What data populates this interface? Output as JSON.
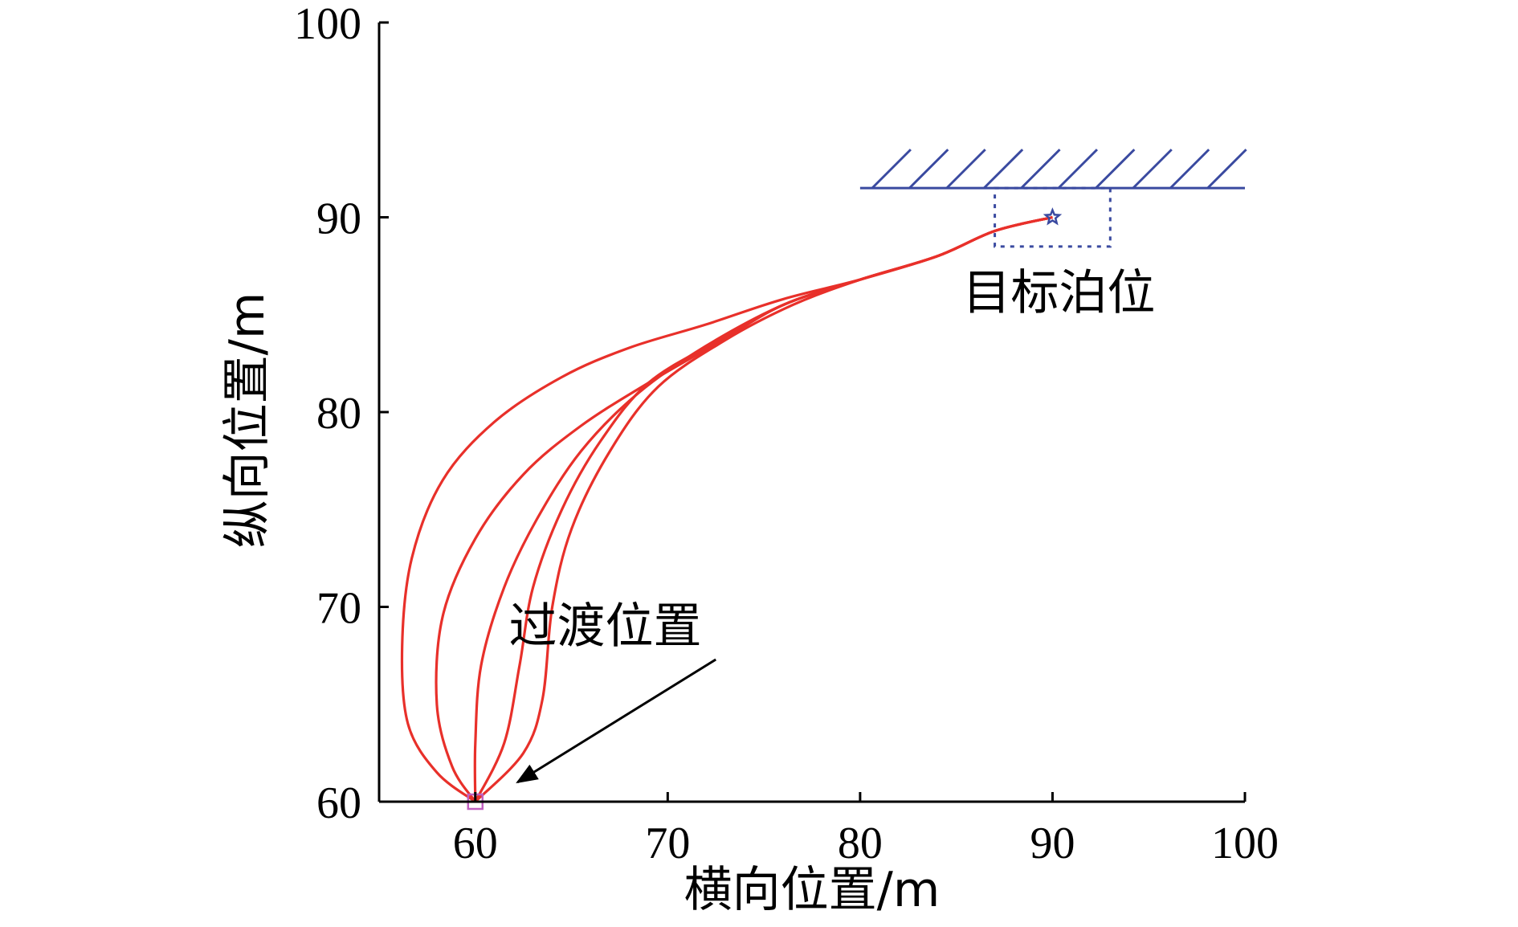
{
  "chart_data": {
    "type": "line",
    "xlabel": "横向位置/m",
    "ylabel": "纵向位置/m",
    "xlim": [
      55,
      100
    ],
    "ylim": [
      60,
      100
    ],
    "xticks": [
      60,
      70,
      80,
      90,
      100
    ],
    "yticks": [
      60,
      70,
      80,
      90,
      100
    ],
    "grid": false,
    "series": [
      {
        "color": "#e8302a",
        "points": [
          [
            60,
            60
          ],
          [
            58,
            61.5
          ],
          [
            56.5,
            64
          ],
          [
            56.2,
            68
          ],
          [
            56.7,
            72.5
          ],
          [
            58.3,
            76.5
          ],
          [
            61,
            79.5
          ],
          [
            64.5,
            81.8
          ],
          [
            68,
            83.3
          ],
          [
            72,
            84.5
          ],
          [
            76,
            85.8
          ],
          [
            80,
            86.8
          ],
          [
            84,
            88
          ],
          [
            87,
            89.3
          ],
          [
            90,
            90
          ]
        ]
      },
      {
        "color": "#e8302a",
        "points": [
          [
            60,
            60
          ],
          [
            58.8,
            61.8
          ],
          [
            58,
            65
          ],
          [
            58.3,
            69.5
          ],
          [
            60,
            73.5
          ],
          [
            62.5,
            76.8
          ],
          [
            65.5,
            79.3
          ],
          [
            69,
            81.5
          ],
          [
            72.5,
            83.5
          ],
          [
            76,
            85.5
          ],
          [
            80,
            86.8
          ],
          [
            84,
            88
          ],
          [
            87,
            89.3
          ],
          [
            90,
            90
          ]
        ]
      },
      {
        "color": "#e8302a",
        "points": [
          [
            60,
            60
          ],
          [
            60,
            63
          ],
          [
            60.3,
            67
          ],
          [
            61.5,
            71
          ],
          [
            63.2,
            74.5
          ],
          [
            65.5,
            78
          ],
          [
            68.5,
            81
          ],
          [
            72,
            83.4
          ],
          [
            76,
            85.5
          ],
          [
            80,
            86.8
          ],
          [
            84,
            88
          ],
          [
            87,
            89.3
          ],
          [
            90,
            90
          ]
        ]
      },
      {
        "color": "#e8302a",
        "points": [
          [
            60,
            60
          ],
          [
            61.5,
            63
          ],
          [
            62.3,
            67
          ],
          [
            63,
            71
          ],
          [
            64.5,
            75
          ],
          [
            66.5,
            78.5
          ],
          [
            69,
            81.5
          ],
          [
            72.5,
            83.6
          ],
          [
            76,
            85.5
          ],
          [
            80,
            86.8
          ],
          [
            84,
            88
          ],
          [
            87,
            89.3
          ],
          [
            90,
            90
          ]
        ]
      },
      {
        "color": "#e8302a",
        "points": [
          [
            60,
            60
          ],
          [
            62.5,
            62.5
          ],
          [
            63.5,
            65.3
          ],
          [
            64,
            70
          ],
          [
            65,
            74
          ],
          [
            67,
            78
          ],
          [
            69.5,
            81.3
          ],
          [
            73,
            83.7
          ],
          [
            76.5,
            85.5
          ],
          [
            80,
            86.8
          ],
          [
            84,
            88
          ],
          [
            87,
            89.3
          ],
          [
            90,
            90
          ]
        ]
      }
    ],
    "target": {
      "x": 90,
      "y": 90,
      "marker": "star",
      "color": "#3a4aa0"
    },
    "start": {
      "x": 60,
      "y": 60,
      "marker": "square",
      "color": "#c060c0"
    },
    "wall": {
      "y": 91.5,
      "x_from": 80,
      "x_to": 100,
      "color": "#3a4aa0"
    },
    "target_box": {
      "x_from": 87,
      "x_to": 93,
      "y_from": 88.5,
      "y_to": 91.5,
      "color": "#3a4aa0"
    },
    "annotations": [
      {
        "text": "目标泊位",
        "x": 90,
        "y": 86
      },
      {
        "text": "过渡位置",
        "x": 67,
        "y": 69,
        "arrow_to": [
          62.2,
          61
        ]
      }
    ]
  }
}
